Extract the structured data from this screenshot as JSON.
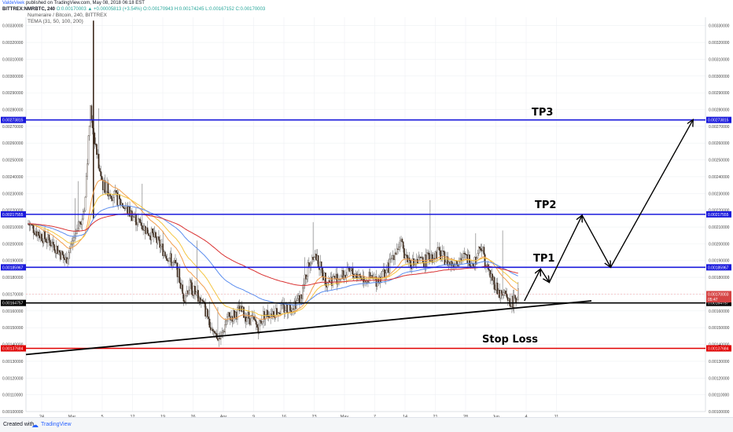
{
  "header": {
    "author": "ValdeVeek",
    "published": "published on TradingView.com, May 08, 2018 06:18 EST",
    "symbol": "BITTREX:NMRBTC, 240",
    "ohlc_line": "O:0.00170003 ▲ +0.00005813 (+3.54%) O:0.00170943 H:0.00174245 L:0.00167152 C:0.00170003",
    "title": "Numeraire / Bitcoin, 240, BITTREX",
    "indicator": "TEMA (31, 50, 100, 200)"
  },
  "footer": {
    "created_with": "Created with",
    "brand": "TradingView"
  },
  "colors": {
    "blue_line": "#1a1adc",
    "red_line": "#e00000",
    "support": "#000000",
    "candle_up": "#f4f4f4",
    "candle_down": "#3d2a1c",
    "tema_31": "#f29e4c",
    "tema_50": "#f4c542",
    "tema_100": "#5b8def",
    "tema_200": "#d93030"
  },
  "chart_data": {
    "type": "candlestick",
    "ylim": [
      0.001,
      0.00335
    ],
    "y_ticks": [
      "0.00100000",
      "0.00110000",
      "0.00120000",
      "0.00130000",
      "0.00140000",
      "0.00150000",
      "0.00160000",
      "0.00170000",
      "0.00180000",
      "0.00190000",
      "0.00200000",
      "0.00210000",
      "0.00220000",
      "0.00230000",
      "0.00240000",
      "0.00250000",
      "0.00260000",
      "0.00270000",
      "0.00280000",
      "0.00290000",
      "0.00300000",
      "0.00310000",
      "0.00320000",
      "0.00330000"
    ],
    "x_ticks": [
      "24",
      "Mar",
      "5",
      "12",
      "19",
      "26",
      "Apr",
      "9",
      "16",
      "23",
      "May",
      "7",
      "14",
      "21",
      "28",
      "Jun",
      "4",
      "11"
    ],
    "levels": [
      {
        "label": "0.00273815",
        "value": 0.00273815,
        "kind": "target",
        "text": "TP3"
      },
      {
        "label": "0.00217555",
        "value": 0.00217555,
        "kind": "target",
        "text": "TP2"
      },
      {
        "label": "0.00185967",
        "value": 0.00185967,
        "kind": "target",
        "text": "TP1"
      },
      {
        "label": "0.00164757",
        "value": 0.00164757,
        "kind": "entry",
        "text": ""
      },
      {
        "label": "0.00137684",
        "value": 0.00137684,
        "kind": "stop",
        "text": "Stop Loss"
      }
    ],
    "price_tags": [
      {
        "label": "0.00170003",
        "value": 0.00170003
      },
      {
        "label": "05:47",
        "value": 0.001669
      }
    ],
    "support_line": {
      "from": {
        "x": 0,
        "y": 0.00134
      },
      "to": {
        "x": 100,
        "y": 0.00166
      }
    },
    "projection_path": [
      {
        "x": 80.0,
        "y": 0.00166
      },
      {
        "x": 82.6,
        "y": 0.00185
      },
      {
        "x": 84.0,
        "y": 0.00177
      },
      {
        "x": 89.3,
        "y": 0.00217
      },
      {
        "x": 93.9,
        "y": 0.00186
      },
      {
        "x": 107.2,
        "y": 0.00274
      }
    ]
  }
}
